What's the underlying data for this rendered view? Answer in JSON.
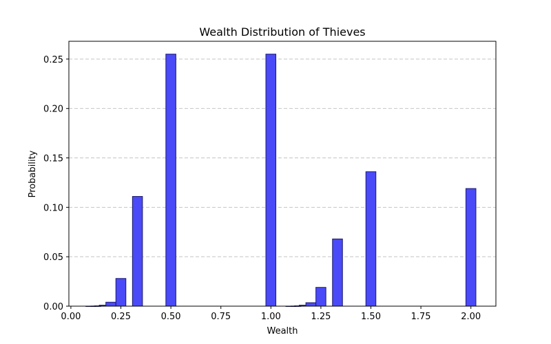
{
  "chart_data": {
    "type": "bar",
    "title": "Wealth Distribution of Thieves",
    "xlabel": "Wealth",
    "ylabel": "Probability",
    "xlim": [
      -0.01,
      2.125
    ],
    "ylim": [
      0,
      0.268
    ],
    "x_ticks": [
      "0.00",
      "0.25",
      "0.50",
      "0.75",
      "1.00",
      "1.25",
      "1.50",
      "1.75",
      "2.00"
    ],
    "y_ticks": [
      "0.00",
      "0.05",
      "0.10",
      "0.15",
      "0.20",
      "0.25"
    ],
    "grid": "y-dashed",
    "bar_width": 0.05,
    "bar_color": "#4a4af8",
    "edge_color": "#1a1a66",
    "series": [
      {
        "x": [
          0.1,
          0.125,
          0.143,
          0.167,
          0.2,
          0.25,
          0.333,
          0.5,
          1.0,
          1.1,
          1.125,
          1.143,
          1.167,
          1.2,
          1.25,
          1.333,
          1.5,
          2.0
        ],
        "values": [
          2e-05,
          0.0001,
          0.0003,
          0.001,
          0.004,
          0.028,
          0.111,
          0.255,
          0.255,
          2e-05,
          0.0001,
          0.0003,
          0.001,
          0.0035,
          0.019,
          0.068,
          0.136,
          0.119
        ]
      }
    ]
  }
}
